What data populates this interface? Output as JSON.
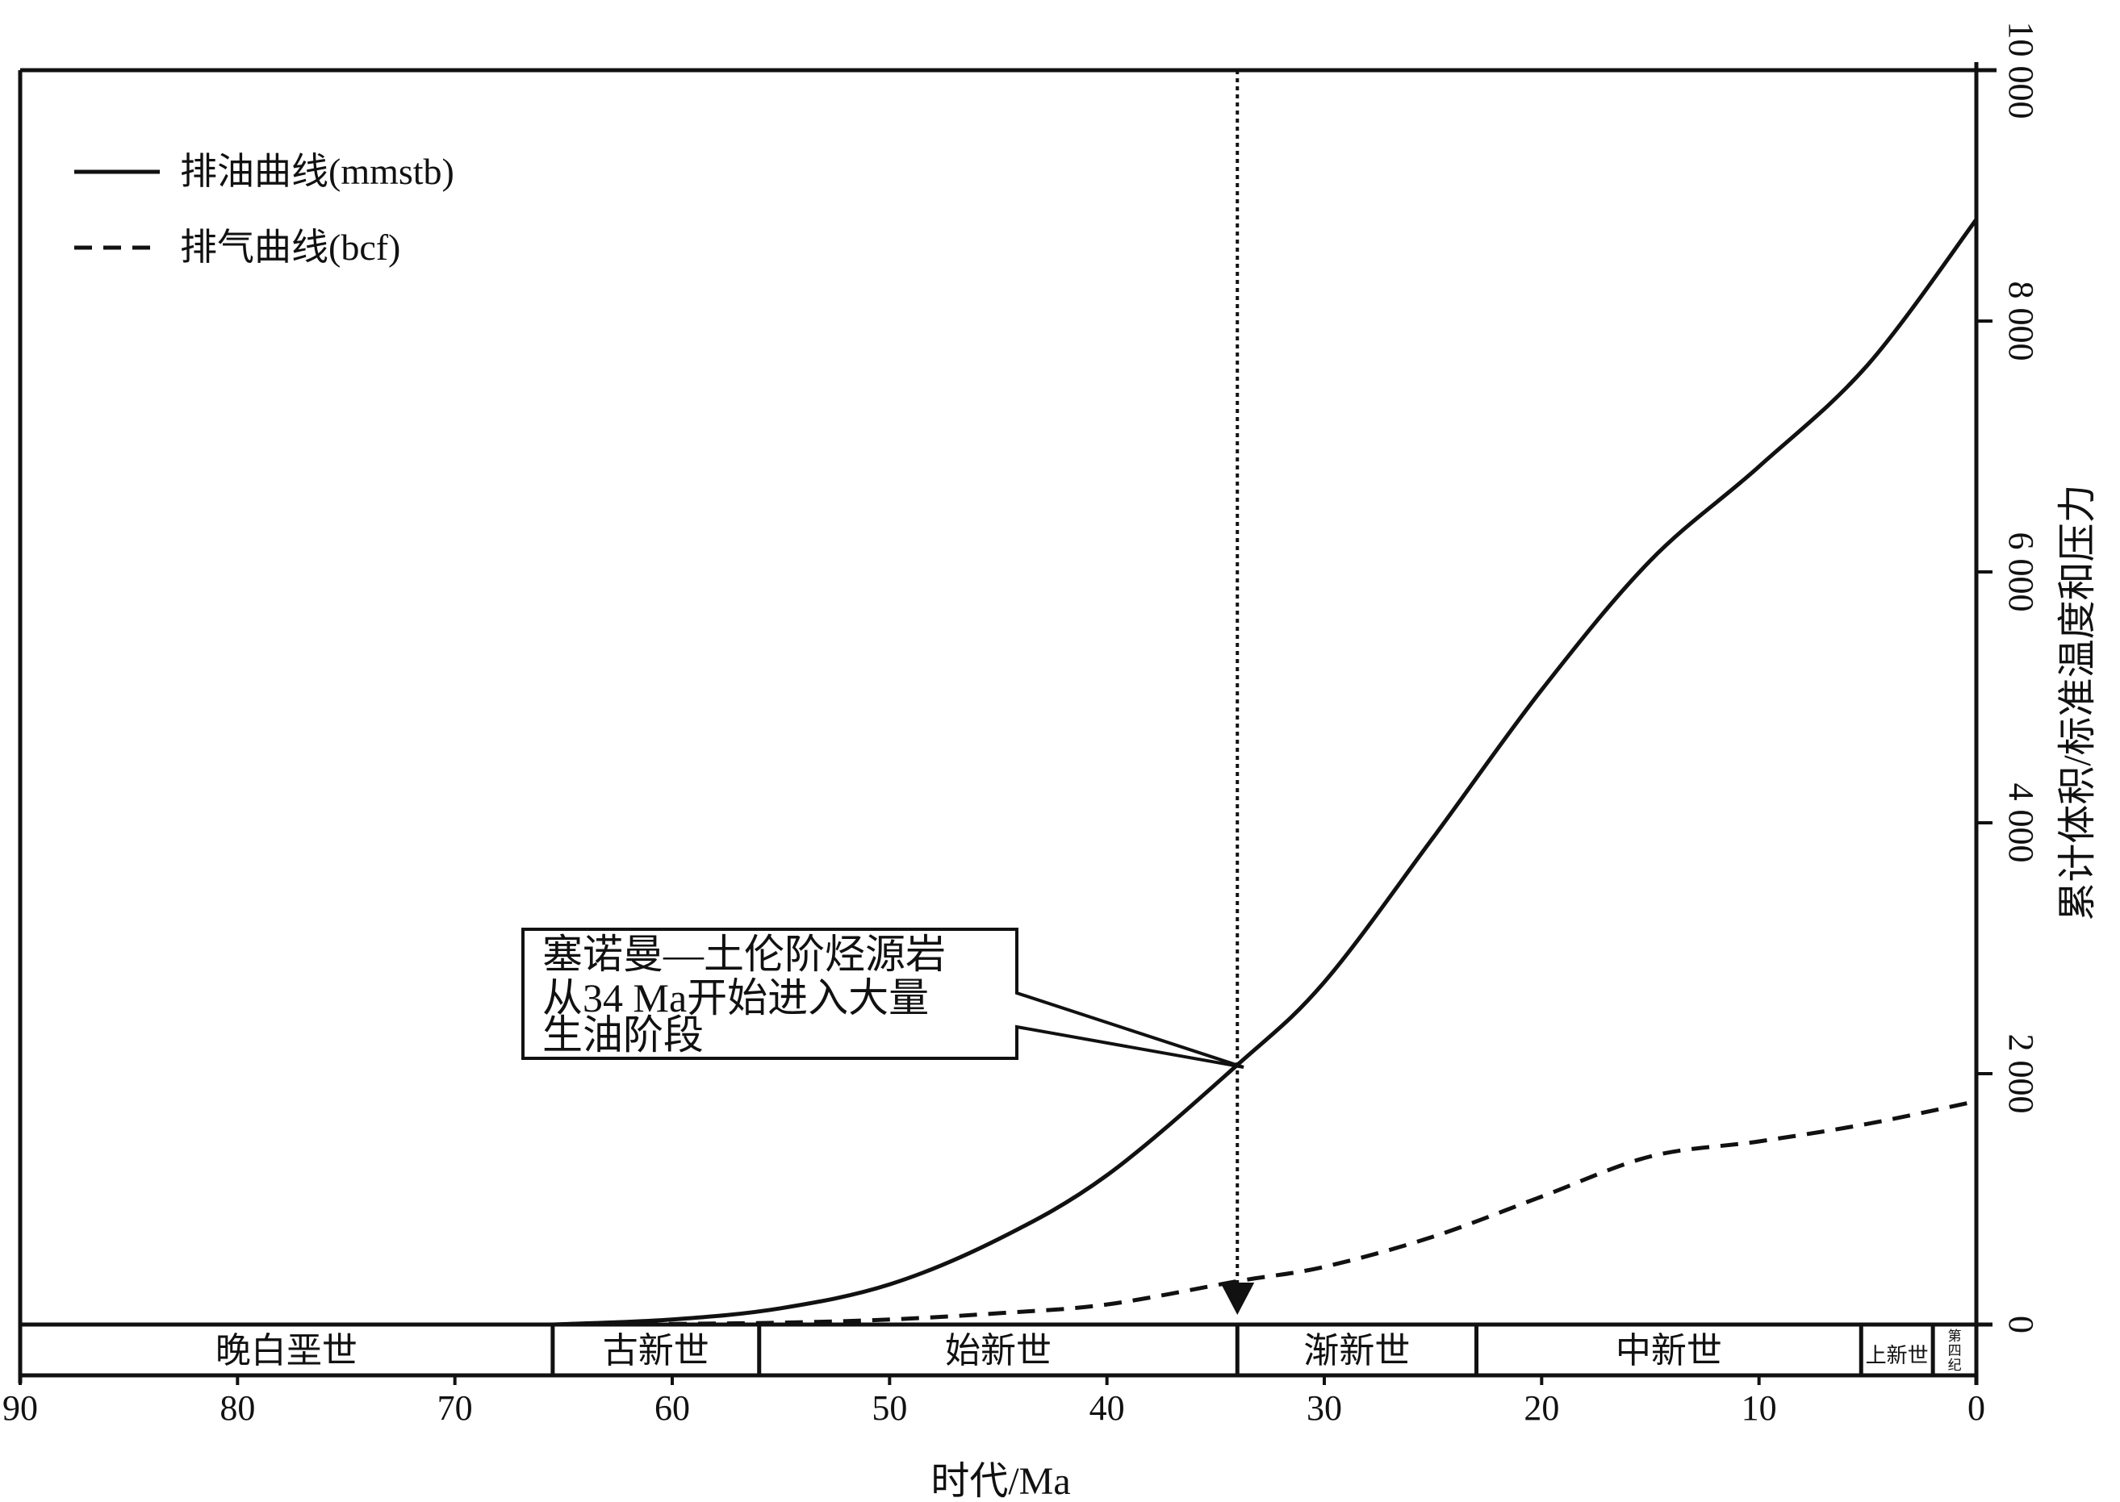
{
  "chart_data": {
    "type": "line",
    "title": "",
    "xlabel": "时代/Ma",
    "ylabel": "累计体积/标准温度和压力",
    "xlim": [
      90,
      0
    ],
    "ylim": [
      0,
      10000
    ],
    "x_ticks": [
      90,
      80,
      70,
      60,
      50,
      40,
      30,
      20,
      10,
      0
    ],
    "x_tick_labels": [
      "90",
      "80",
      "70",
      "60",
      "50",
      "40",
      "30",
      "20",
      "10",
      "0"
    ],
    "y_ticks": [
      0,
      2000,
      4000,
      6000,
      8000,
      10000
    ],
    "y_tick_labels": [
      "0",
      "2 000",
      "4 000",
      "6 000",
      "8 000",
      "10 000"
    ],
    "y_axis_side": "right",
    "grid": false,
    "legend_position": "top-left",
    "series": [
      {
        "name": "排油曲线(mmstb)",
        "style": "solid",
        "x": [
          65.5,
          60,
          55,
          50,
          45,
          40,
          34,
          30,
          25,
          20,
          15,
          10,
          5,
          0
        ],
        "y": [
          0,
          40,
          130,
          320,
          680,
          1190,
          2070,
          2730,
          3880,
          5060,
          6090,
          6840,
          7650,
          8810
        ]
      },
      {
        "name": "排气曲线(bcf)",
        "style": "dashed",
        "x": [
          65.5,
          60,
          55,
          50,
          45,
          40,
          34,
          30,
          25,
          20,
          15,
          10,
          5,
          0
        ],
        "y": [
          0,
          5,
          15,
          40,
          90,
          160,
          345,
          460,
          700,
          1020,
          1340,
          1460,
          1600,
          1780
        ]
      }
    ],
    "epochs": [
      {
        "name": "晚白垩世",
        "from": 90,
        "to": 65.5
      },
      {
        "name": "古新世",
        "from": 65.5,
        "to": 56
      },
      {
        "name": "始新世",
        "from": 56,
        "to": 34
      },
      {
        "name": "渐新世",
        "from": 34,
        "to": 23
      },
      {
        "name": "中新世",
        "from": 23,
        "to": 5.3
      },
      {
        "name": "上新世",
        "from": 5.3,
        "to": 2.0
      },
      {
        "name": "第四纪",
        "from": 2.0,
        "to": 0
      }
    ],
    "marker_line": {
      "x": 34
    },
    "annotation": {
      "lines": [
        "塞诺曼—土伦阶烃源岩",
        "从34 Ma开始进入大量",
        "生油阶段"
      ],
      "points_to": {
        "x": 34,
        "y": 2070
      }
    }
  }
}
